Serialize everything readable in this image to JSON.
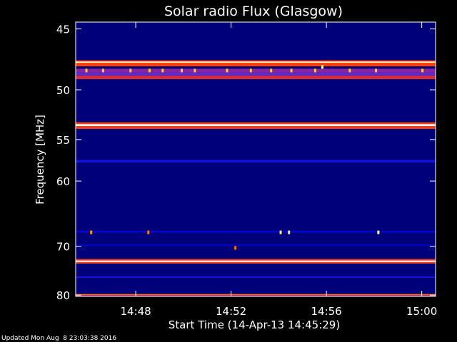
{
  "chart_data": {
    "type": "heatmap",
    "title": "Solar radio Flux (Glasgow)",
    "xlabel": "Start Time (14-Apr-13 14:45:29)",
    "ylabel": "Frequency [MHz]",
    "x_ticks": [
      "14:48",
      "14:52",
      "14:56",
      "15:00"
    ],
    "x_tick_minutes": [
      2.52,
      6.52,
      10.52,
      14.52
    ],
    "x_range_minutes": [
      0,
      15.1
    ],
    "y_ticks": [
      45,
      50,
      55,
      60,
      70,
      80
    ],
    "y_range": [
      44.5,
      80.3
    ],
    "y_scale": "reciprocal",
    "colormap": [
      "#000010",
      "#000066",
      "#0000cc",
      "#3030ff",
      "#c02060",
      "#ff4000",
      "#ffa000",
      "#ffff80",
      "#ffffff"
    ],
    "intensity_range": [
      0,
      1
    ],
    "background_level": 0.15,
    "bands": [
      {
        "freq": 47.6,
        "level": 0.62
      },
      {
        "freq": 47.7,
        "level": 0.98
      },
      {
        "freq": 47.8,
        "level": 0.62
      },
      {
        "freq": 48.3,
        "level": 0.45
      },
      {
        "freq": 48.6,
        "level": 0.42
      },
      {
        "freq": 48.9,
        "level": 0.55
      },
      {
        "freq": 53.3,
        "level": 0.6
      },
      {
        "freq": 53.5,
        "level": 1.0
      },
      {
        "freq": 53.7,
        "level": 0.6
      },
      {
        "freq": 57.5,
        "level": 0.3
      },
      {
        "freq": 67.5,
        "level": 0.26
      },
      {
        "freq": 69.8,
        "level": 0.24
      },
      {
        "freq": 72.5,
        "level": 0.6
      },
      {
        "freq": 72.8,
        "level": 1.0
      },
      {
        "freq": 73.1,
        "level": 0.6
      },
      {
        "freq": 76.0,
        "level": 0.3
      },
      {
        "freq": 79.9,
        "level": 0.7
      },
      {
        "freq": 80.1,
        "level": 0.5
      }
    ],
    "bursts": [
      {
        "time": 0.45,
        "freq": 48.3,
        "level": 0.8
      },
      {
        "time": 1.15,
        "freq": 48.3,
        "level": 0.8
      },
      {
        "time": 2.3,
        "freq": 48.3,
        "level": 0.8
      },
      {
        "time": 3.1,
        "freq": 48.3,
        "level": 0.8
      },
      {
        "time": 3.65,
        "freq": 48.3,
        "level": 0.8
      },
      {
        "time": 4.45,
        "freq": 48.3,
        "level": 0.8
      },
      {
        "time": 5.0,
        "freq": 48.3,
        "level": 0.8
      },
      {
        "time": 6.35,
        "freq": 48.3,
        "level": 0.8
      },
      {
        "time": 7.35,
        "freq": 48.3,
        "level": 0.8
      },
      {
        "time": 8.2,
        "freq": 48.3,
        "level": 0.8
      },
      {
        "time": 9.05,
        "freq": 48.3,
        "level": 0.8
      },
      {
        "time": 10.05,
        "freq": 48.3,
        "level": 0.8
      },
      {
        "time": 10.35,
        "freq": 48.0,
        "level": 0.9
      },
      {
        "time": 11.5,
        "freq": 48.3,
        "level": 0.8
      },
      {
        "time": 12.6,
        "freq": 48.3,
        "level": 0.8
      },
      {
        "time": 14.55,
        "freq": 48.3,
        "level": 0.8
      },
      {
        "time": 0.65,
        "freq": 67.6,
        "level": 0.75
      },
      {
        "time": 3.05,
        "freq": 67.6,
        "level": 0.7
      },
      {
        "time": 8.6,
        "freq": 67.6,
        "level": 0.85
      },
      {
        "time": 8.95,
        "freq": 67.6,
        "level": 0.85
      },
      {
        "time": 12.7,
        "freq": 67.6,
        "level": 0.9
      },
      {
        "time": 6.7,
        "freq": 70.3,
        "level": 0.7
      }
    ]
  },
  "footer": {
    "updated": "Updated Mon Aug  8 23:03:38 2016"
  }
}
